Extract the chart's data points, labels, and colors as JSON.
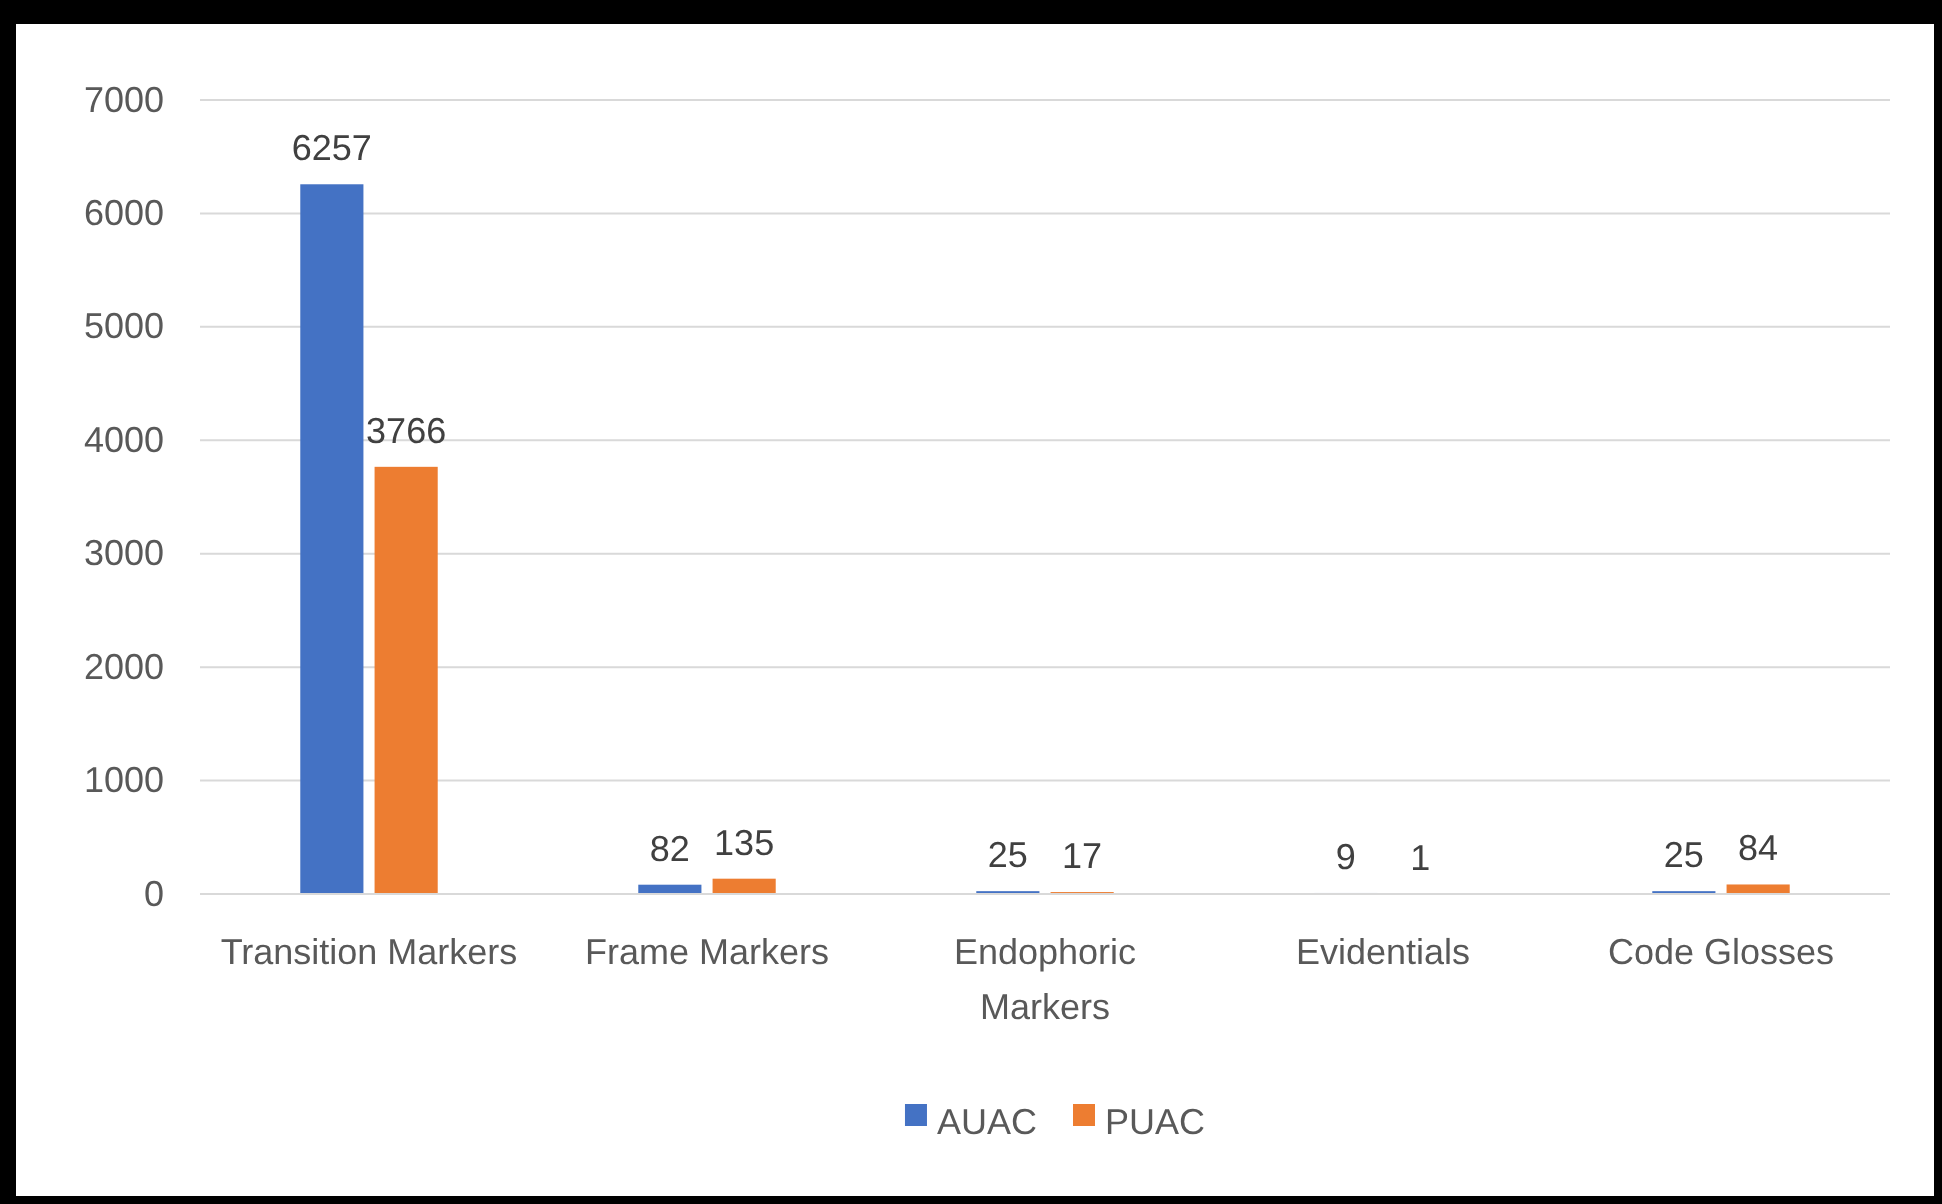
{
  "chart_data": {
    "type": "bar",
    "categories": [
      "Transition Markers",
      "Frame Markers",
      "Endophoric Markers",
      "Evidentials",
      "Code Glosses"
    ],
    "series": [
      {
        "name": "AUAC",
        "color": "#4472c4",
        "values": [
          6257,
          82,
          25,
          9,
          25
        ]
      },
      {
        "name": "PUAC",
        "color": "#ed7d31",
        "values": [
          3766,
          135,
          17,
          1,
          84
        ]
      }
    ],
    "ylim": [
      0,
      7000
    ],
    "yticks": [
      0,
      1000,
      2000,
      3000,
      4000,
      5000,
      6000,
      7000
    ],
    "grid": "y",
    "legend": "bottom",
    "data_labels": true
  }
}
